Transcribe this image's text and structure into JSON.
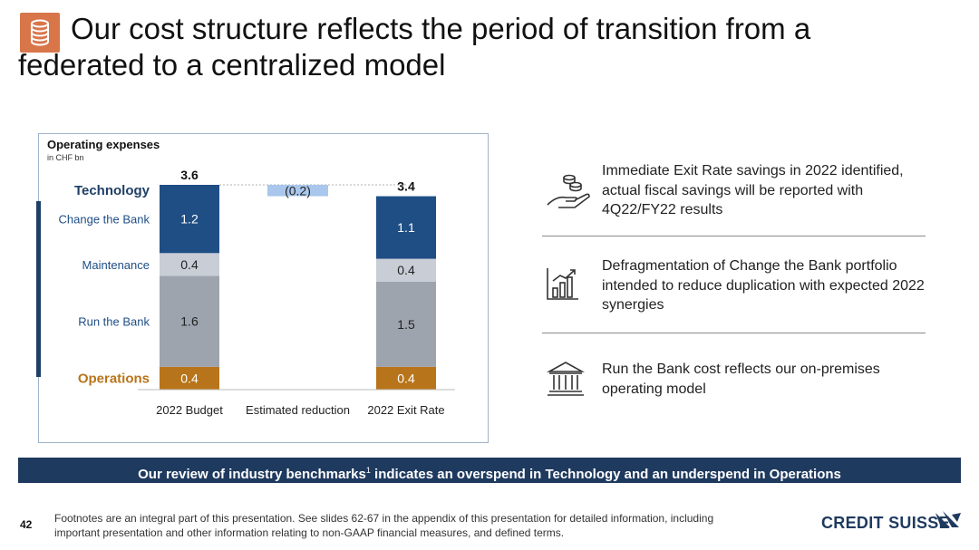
{
  "title": {
    "line1": "Our cost structure reflects the period of transition from a",
    "line2": "federated to a centralized model",
    "icon": "coins-stack-icon"
  },
  "chart_panel": {
    "title": "Operating expenses",
    "subtitle": "in CHF bn"
  },
  "chart_data": {
    "type": "bar",
    "stacked": true,
    "waterfall": true,
    "categories": [
      "2022 Budget",
      "Estimated reduction",
      "2022 Exit Rate"
    ],
    "groups": [
      {
        "label": "Technology",
        "color": "#1f3f66"
      },
      {
        "label": "Operations",
        "color": "#b8741a"
      }
    ],
    "series": [
      {
        "name": "Change the Bank",
        "color": "#1f4e85",
        "values": [
          1.2,
          null,
          1.1
        ],
        "labels": [
          "1.2",
          "",
          "1.1"
        ]
      },
      {
        "name": "Maintenance",
        "color": "#c9cdd6",
        "values": [
          0.4,
          null,
          0.4
        ],
        "labels": [
          "0.4",
          "",
          "0.4"
        ]
      },
      {
        "name": "Run the Bank",
        "color": "#9ea4ae",
        "values": [
          1.6,
          null,
          1.5
        ],
        "labels": [
          "1.6",
          "",
          "1.5"
        ]
      },
      {
        "name": "Operations",
        "color": "#b8741a",
        "values": [
          0.4,
          null,
          0.4
        ],
        "labels": [
          "0.4",
          "",
          "0.4"
        ]
      }
    ],
    "totals": [
      "3.6",
      "",
      "3.4"
    ],
    "reduction": {
      "value": -0.2,
      "label": "(0.2)",
      "color": "#a9c7ec"
    },
    "ylim": [
      0,
      4.0
    ]
  },
  "bullets": [
    {
      "icon": "hand-coins-icon",
      "text": "Immediate Exit Rate savings in 2022 identified, actual fiscal savings will be reported with 4Q22/FY22 results"
    },
    {
      "icon": "bar-chart-growth-icon",
      "text": "Defragmentation of Change the Bank portfolio intended to reduce duplication with expected 2022 synergies"
    },
    {
      "icon": "bank-building-icon",
      "text": "Run the Bank cost reflects our on-premises operating model"
    }
  ],
  "banner": {
    "text_before": "Our review of industry benchmarks",
    "superscript": "1",
    "text_after": " indicates an overspend in Technology and an underspend in Operations"
  },
  "footer": {
    "page_number": "42",
    "footnote": "Footnotes are an integral part of this presentation. See slides 62-67 in the appendix of this presentation for detailed information, including important presentation and other information relating to non-GAAP financial measures, and defined terms.",
    "logo": "CREDIT SUISSE"
  }
}
